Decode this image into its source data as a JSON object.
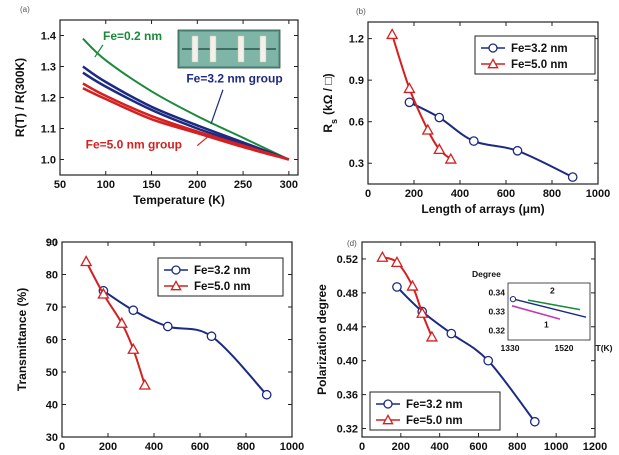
{
  "colors": {
    "green": "#1a8a3a",
    "navy": "#1c2a82",
    "red": "#d42020",
    "inset_green": "#1a8a3a",
    "inset_magenta": "#c03cb0"
  },
  "chart_data": [
    {
      "type": "line",
      "panel_letter": "(a)",
      "xlabel": "Temperature (K)",
      "ylabel": "R(T) / R(300K)",
      "xlim": [
        50,
        310
      ],
      "ylim": [
        0.95,
        1.45
      ],
      "xticks": [
        "50",
        "100",
        "150",
        "200",
        "250",
        "300"
      ],
      "yticks": [
        "1.0",
        "1.1",
        "1.2",
        "1.3",
        "1.4"
      ],
      "series": [
        {
          "name": "Fe=0.2 nm",
          "color": "#1a8a3a",
          "width": 2,
          "x": [
            75,
            100,
            150,
            200,
            250,
            300
          ],
          "y": [
            1.39,
            1.32,
            1.22,
            1.14,
            1.07,
            1.0
          ]
        },
        {
          "color": "#1c2a82",
          "width": 2.5,
          "x": [
            75,
            100,
            150,
            200,
            250,
            300
          ],
          "y": [
            1.3,
            1.25,
            1.17,
            1.11,
            1.055,
            1.0
          ]
        },
        {
          "color": "#1c2a82",
          "width": 2.5,
          "x": [
            75,
            100,
            150,
            200,
            250,
            300
          ],
          "y": [
            1.28,
            1.235,
            1.16,
            1.1,
            1.05,
            1.0
          ]
        },
        {
          "color": "#d42020",
          "width": 2.5,
          "x": [
            75,
            100,
            150,
            200,
            250,
            300
          ],
          "y": [
            1.245,
            1.205,
            1.14,
            1.09,
            1.045,
            1.0
          ]
        },
        {
          "color": "#d42020",
          "width": 2.5,
          "x": [
            75,
            100,
            150,
            200,
            250,
            300
          ],
          "y": [
            1.23,
            1.195,
            1.13,
            1.085,
            1.04,
            1.0
          ]
        }
      ],
      "annotations": [
        {
          "text": "Fe=0.2 nm",
          "color": "#1a8a3a",
          "x": 97,
          "y": 1.385
        },
        {
          "text": "Fe=3.2 nm group",
          "color": "#1c2a82",
          "x": 188,
          "y": 1.248
        },
        {
          "text": "Fe=5.0 nm group",
          "color": "#d42020",
          "x": 78,
          "y": 1.035
        }
      ]
    },
    {
      "type": "line",
      "panel_letter": "(b)",
      "xlabel": "Length of arrays (μm)",
      "ylabel": "R",
      "ylabel_sub": "s",
      "ylabel_unit": "(kΩ / □)",
      "xlim": [
        0,
        1000
      ],
      "ylim": [
        0.15,
        1.32
      ],
      "xticks": [
        "0",
        "200",
        "400",
        "600",
        "800",
        "1000"
      ],
      "yticks": [
        "0.3",
        "0.6",
        "0.9",
        "1.2"
      ],
      "legend": "top-right",
      "series": [
        {
          "name": "Fe=3.2 nm",
          "color": "#1c2a82",
          "marker": "circle",
          "x": [
            180,
            310,
            460,
            650,
            890
          ],
          "y": [
            0.74,
            0.63,
            0.46,
            0.39,
            0.2
          ]
        },
        {
          "name": "Fe=5.0 nm",
          "color": "#d42020",
          "marker": "triangle",
          "x": [
            105,
            180,
            260,
            310,
            360
          ],
          "y": [
            1.23,
            0.84,
            0.54,
            0.4,
            0.33
          ]
        }
      ]
    },
    {
      "type": "line",
      "panel_letter": "(c)",
      "xlabel": "",
      "ylabel": "Transmittance (%)",
      "xlim": [
        0,
        1000
      ],
      "ylim": [
        30,
        90
      ],
      "xticks": [
        "0",
        "200",
        "400",
        "600",
        "800",
        "1000"
      ],
      "yticks": [
        "30",
        "40",
        "50",
        "60",
        "70",
        "80",
        "90"
      ],
      "legend": "top-right",
      "series": [
        {
          "name": "Fe=3.2 nm",
          "color": "#1c2a82",
          "marker": "circle",
          "x": [
            180,
            310,
            460,
            650,
            890
          ],
          "y": [
            75,
            69,
            64,
            61,
            43
          ]
        },
        {
          "name": "Fe=5.0 nm",
          "color": "#d42020",
          "marker": "triangle",
          "x": [
            105,
            180,
            260,
            310,
            360
          ],
          "y": [
            84,
            74,
            65,
            57,
            46
          ]
        }
      ]
    },
    {
      "type": "line",
      "panel_letter": "(d)",
      "xlabel": "",
      "ylabel": "Polarization degree",
      "xlim": [
        0,
        1200
      ],
      "ylim": [
        0.31,
        0.54
      ],
      "xticks": [
        "0",
        "200",
        "400",
        "600",
        "800",
        "1000",
        "1200"
      ],
      "yticks": [
        "0.32",
        "0.36",
        "0.40",
        "0.44",
        "0.48",
        "0.52"
      ],
      "legend": "bottom-left",
      "series": [
        {
          "name": "Fe=3.2 nm",
          "color": "#1c2a82",
          "marker": "circle",
          "x": [
            180,
            310,
            460,
            650,
            890
          ],
          "y": [
            0.487,
            0.458,
            0.432,
            0.4,
            0.328
          ]
        },
        {
          "name": "Fe=5.0 nm",
          "color": "#d42020",
          "marker": "triangle",
          "x": [
            105,
            180,
            260,
            310,
            360
          ],
          "y": [
            0.522,
            0.516,
            0.488,
            0.456,
            0.428
          ]
        }
      ],
      "inset": {
        "title": "Degree",
        "xlabel": "T(K)",
        "xticks": [
          "1330",
          "1520"
        ],
        "yticks": [
          "0.34",
          "0.33",
          "0.32"
        ],
        "labels": [
          "2",
          "1"
        ]
      }
    }
  ]
}
